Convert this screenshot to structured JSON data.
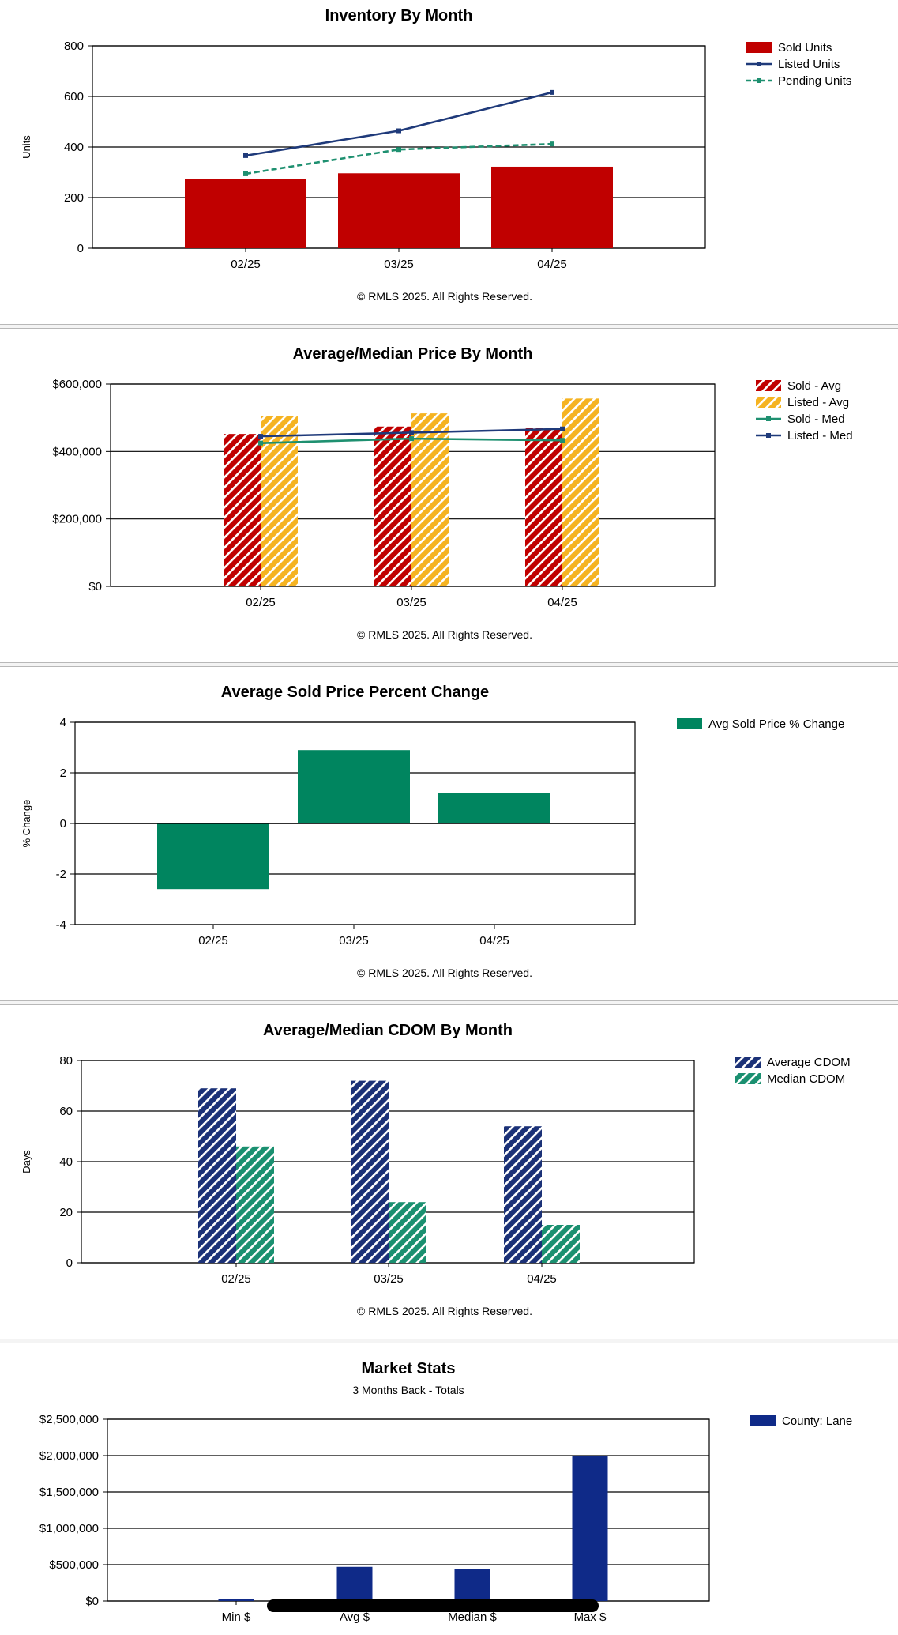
{
  "colors": {
    "sold": "#c00000",
    "listed": "#1f3a7a",
    "pending": "#1e9070",
    "listed_avg": "#f5b321",
    "green": "#00855f",
    "navy": "#1b3177",
    "teal": "#1a9070",
    "blue": "#0f2a88"
  },
  "chart_data": [
    {
      "id": "inventory",
      "type": "bar",
      "title": "Inventory By Month",
      "subtitle": "",
      "ylabel": "Units",
      "ylim": [
        0,
        800
      ],
      "yticks": [
        0,
        200,
        400,
        600,
        800
      ],
      "ytick_labels": [
        "0",
        "200",
        "400",
        "600",
        "800"
      ],
      "categories": [
        "02/25",
        "03/25",
        "04/25"
      ],
      "grid": true,
      "legend_position": "top-right",
      "footer": "© RMLS 2025.  All Rights Reserved.",
      "series": [
        {
          "name": "Sold Units",
          "kind": "bar",
          "pattern": "solid",
          "color": "#c00000",
          "values": [
            272,
            296,
            322
          ]
        },
        {
          "name": "Listed Units",
          "kind": "line",
          "style": "solid",
          "color": "#1f3a7a",
          "values": [
            366,
            464,
            616
          ]
        },
        {
          "name": "Pending Units",
          "kind": "line",
          "style": "dashed",
          "color": "#1e9070",
          "values": [
            294,
            390,
            412
          ]
        }
      ]
    },
    {
      "id": "price",
      "type": "bar",
      "title": "Average/Median Price By Month",
      "subtitle": "",
      "ylabel": "",
      "ylim": [
        0,
        600000
      ],
      "yticks": [
        0,
        200000,
        400000,
        600000
      ],
      "ytick_labels": [
        "$0",
        "$200,000",
        "$400,000",
        "$600,000"
      ],
      "categories": [
        "02/25",
        "03/25",
        "04/25"
      ],
      "grid": true,
      "legend_position": "top-right",
      "footer": "© RMLS 2025.  All Rights Reserved.",
      "series": [
        {
          "name": "Sold - Avg",
          "kind": "bar",
          "pattern": "hatch",
          "color": "#c00000",
          "values": [
            452000,
            474000,
            470000
          ]
        },
        {
          "name": "Listed - Avg",
          "kind": "bar",
          "pattern": "hatch",
          "color": "#f5b321",
          "values": [
            505000,
            513000,
            557000
          ]
        },
        {
          "name": "Sold - Med",
          "kind": "line",
          "style": "solid",
          "color": "#1e9070",
          "values": [
            425000,
            438000,
            433000
          ]
        },
        {
          "name": "Listed - Med",
          "kind": "line",
          "style": "solid",
          "color": "#1f3a7a",
          "values": [
            445000,
            456000,
            467000
          ]
        }
      ]
    },
    {
      "id": "pctchange",
      "type": "bar",
      "title": "Average Sold Price Percent Change",
      "subtitle": "",
      "ylabel": "% Change",
      "ylim": [
        -4,
        4
      ],
      "yticks": [
        -4,
        -2,
        0,
        2,
        4
      ],
      "ytick_labels": [
        "-4",
        "-2",
        "0",
        "2",
        "4"
      ],
      "categories": [
        "02/25",
        "03/25",
        "04/25"
      ],
      "grid": true,
      "legend_position": "top-right",
      "footer": "© RMLS 2025.  All Rights Reserved.",
      "series": [
        {
          "name": "Avg Sold Price % Change",
          "kind": "bar",
          "pattern": "solid",
          "color": "#00855f",
          "values": [
            -2.6,
            2.9,
            1.2
          ]
        }
      ]
    },
    {
      "id": "cdom",
      "type": "bar",
      "title": "Average/Median CDOM By Month",
      "subtitle": "",
      "ylabel": "Days",
      "ylim": [
        0,
        80
      ],
      "yticks": [
        0,
        20,
        40,
        60,
        80
      ],
      "ytick_labels": [
        "0",
        "20",
        "40",
        "60",
        "80"
      ],
      "categories": [
        "02/25",
        "03/25",
        "04/25"
      ],
      "grid": true,
      "legend_position": "top-right",
      "footer": "© RMLS 2025.  All Rights Reserved.",
      "series": [
        {
          "name": "Average CDOM",
          "kind": "bar",
          "pattern": "hatch",
          "color": "#1b3177",
          "values": [
            69,
            72,
            54
          ]
        },
        {
          "name": "Median CDOM",
          "kind": "bar",
          "pattern": "hatch",
          "color": "#1a9070",
          "values": [
            46,
            24,
            15
          ]
        }
      ]
    },
    {
      "id": "market",
      "type": "bar",
      "title": "Market Stats",
      "subtitle": "3 Months Back - Totals",
      "ylabel": "",
      "ylim": [
        0,
        2500000
      ],
      "yticks": [
        0,
        500000,
        1000000,
        1500000,
        2000000,
        2500000
      ],
      "ytick_labels": [
        "$0",
        "$500,000",
        "$1,000,000",
        "$1,500,000",
        "$2,000,000",
        "$2,500,000"
      ],
      "categories": [
        "Min $",
        "Avg $",
        "Median $",
        "Max $"
      ],
      "grid": true,
      "legend_position": "top-right",
      "footer": "",
      "series": [
        {
          "name": "County: Lane",
          "kind": "bar",
          "pattern": "solid",
          "color": "#0f2a88",
          "values": [
            25000,
            470000,
            440000,
            2000000
          ]
        }
      ]
    }
  ]
}
